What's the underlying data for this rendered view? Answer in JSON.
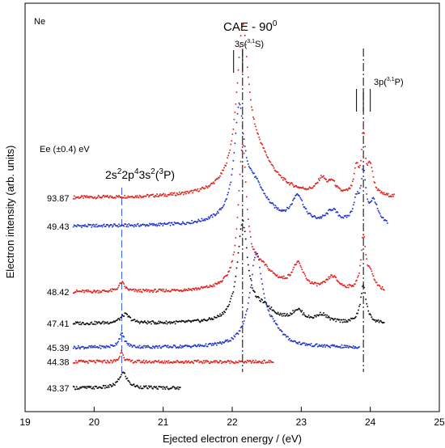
{
  "chart_data": {
    "type": "scatter",
    "title": "CAE - 90",
    "title_sup": "0",
    "xlabel": "Ejected electron energy / (eV)",
    "ylabel": "Electron intensity (arb. units)",
    "xlim": [
      19,
      25
    ],
    "x_ticks": [
      19,
      20,
      21,
      22,
      23,
      24,
      25
    ],
    "x_tick_labels": [
      "19",
      "20",
      "21",
      "22",
      "23",
      "24",
      "25"
    ],
    "grid": false,
    "legend": "none",
    "element_label": "Ne",
    "energy_header": {
      "prefix": "Ee (",
      "pm": "±",
      "value": "0.4",
      "suffix": ")  eV"
    },
    "annotations": {
      "peak_3s": {
        "main": "3s(",
        "sup": "3,1",
        "end": "S)",
        "x": 22.1
      },
      "peak_3p": {
        "main": "3p(",
        "sup": "3,1",
        "end": "P)",
        "x": 23.9
      },
      "config_label": {
        "parts": [
          {
            "t": "2s",
            "sup": false
          },
          {
            "t": "2",
            "sup": true
          },
          {
            "t": "2p",
            "sup": false
          },
          {
            "t": "4",
            "sup": true
          },
          {
            "t": "3s",
            "sup": false
          },
          {
            "t": "2",
            "sup": true
          },
          {
            "t": "(",
            "sup": false
          },
          {
            "t": "3",
            "sup": true
          },
          {
            "t": "P)",
            "sup": false
          }
        ],
        "x": 20.4
      }
    },
    "reference_lines": [
      {
        "x": 20.4,
        "style": "dashed",
        "color": "#2f5bff"
      },
      {
        "x": 22.15,
        "style": "dashdot",
        "color": "#000000"
      },
      {
        "x": 23.9,
        "style": "dashdot",
        "color": "#000000"
      }
    ],
    "marker_ticks_3s": [
      22.02,
      22.15
    ],
    "marker_ticks_3p": [
      23.8,
      23.9,
      24.0
    ],
    "series": [
      {
        "name": "93.87",
        "color": "#e0201b",
        "baseline": 0.83,
        "xmin": 19.7,
        "xmax": 24.35,
        "peaks": [
          [
            22.15,
            0.1,
            0.67
          ],
          [
            22.35,
            0.3,
            0.18
          ],
          [
            23.3,
            0.08,
            0.07
          ],
          [
            23.45,
            0.06,
            0.05
          ],
          [
            23.8,
            0.04,
            0.12
          ],
          [
            23.9,
            0.03,
            0.28
          ],
          [
            24.0,
            0.05,
            0.13
          ]
        ]
      },
      {
        "name": "49.43",
        "color": "#2233cc",
        "baseline": 0.7,
        "xmin": 19.7,
        "xmax": 24.25,
        "peaks": [
          [
            22.1,
            0.08,
            0.45
          ],
          [
            22.3,
            0.25,
            0.18
          ],
          [
            22.95,
            0.1,
            0.12
          ],
          [
            23.45,
            0.1,
            0.06
          ],
          [
            23.8,
            0.06,
            0.1
          ],
          [
            23.9,
            0.04,
            0.22
          ],
          [
            24.05,
            0.07,
            0.1
          ]
        ]
      },
      {
        "name": "48.42",
        "color": "#e0201b",
        "baseline": 0.4,
        "xmin": 19.7,
        "xmax": 24.2,
        "peaks": [
          [
            20.4,
            0.05,
            0.04
          ],
          [
            22.15,
            0.07,
            0.63
          ],
          [
            22.4,
            0.25,
            0.1
          ],
          [
            22.95,
            0.1,
            0.11
          ],
          [
            23.45,
            0.1,
            0.06
          ],
          [
            23.9,
            0.04,
            0.24
          ],
          [
            24.0,
            0.06,
            0.07
          ]
        ]
      },
      {
        "name": "47.41",
        "color": "#111111",
        "baseline": 0.255,
        "xmin": 19.7,
        "xmax": 24.2,
        "peaks": [
          [
            20.45,
            0.08,
            0.04
          ],
          [
            22.15,
            0.09,
            0.45
          ],
          [
            22.45,
            0.2,
            0.06
          ],
          [
            22.95,
            0.1,
            0.05
          ],
          [
            23.3,
            0.1,
            0.035
          ],
          [
            23.9,
            0.05,
            0.17
          ]
        ]
      },
      {
        "name": "45.39",
        "color": "#2233cc",
        "baseline": 0.145,
        "xmin": 19.7,
        "xmax": 23.85,
        "peaks": [
          [
            20.4,
            0.05,
            0.06
          ],
          [
            22.35,
            0.11,
            0.42
          ],
          [
            22.6,
            0.15,
            0.06
          ]
        ]
      },
      {
        "name": "44.38",
        "color": "#e0201b",
        "baseline": 0.08,
        "xmin": 19.7,
        "xmax": 22.6,
        "peaks": [
          [
            20.4,
            0.03,
            0.05
          ]
        ]
      },
      {
        "name": "43.37",
        "color": "#111111",
        "baseline": -0.04,
        "xmin": 19.7,
        "xmax": 21.25,
        "peaks": [
          [
            20.42,
            0.07,
            0.07
          ]
        ]
      }
    ]
  }
}
